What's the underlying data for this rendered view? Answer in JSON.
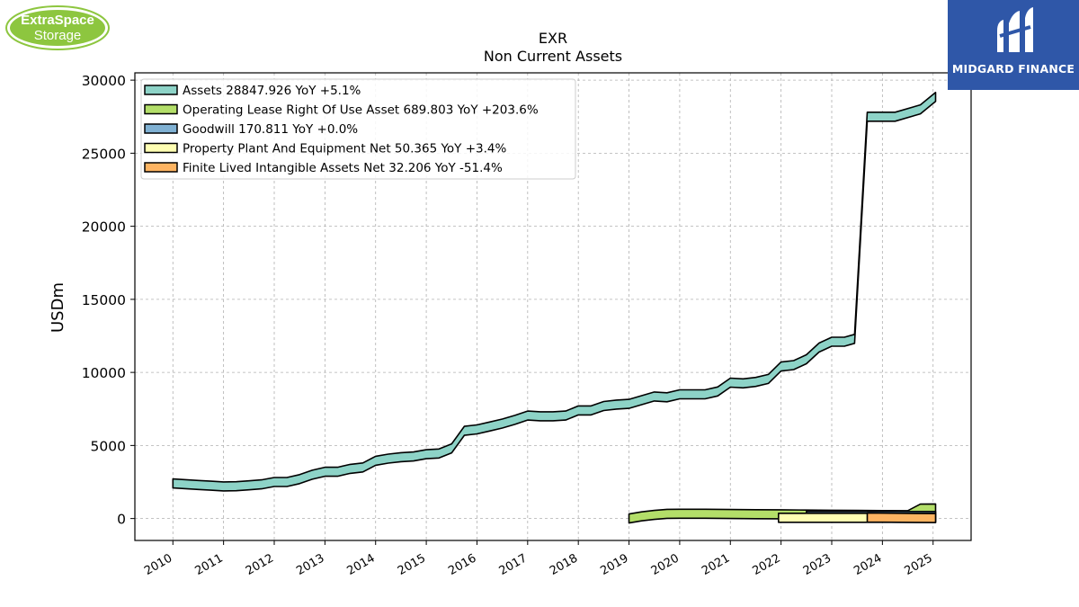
{
  "logos": {
    "left_line1": "ExtraSpace",
    "left_line2": "Storage",
    "right_text": "MIDGARD FINANCE"
  },
  "colors": {
    "assets": "#8dd3c7",
    "operating_lease": "#b3de69",
    "goodwill": "#80b1d3",
    "ppe": "#ffffb3",
    "intangibles": "#fdb462",
    "left_logo": "#8dc63f",
    "right_logo_bg": "#2f57a8"
  },
  "chart_data": {
    "type": "area",
    "title": "EXR",
    "subtitle": "Non Current  Assets",
    "ylabel": "USDm",
    "xlabel": "",
    "ylim": [
      -1500,
      30500
    ],
    "xlim": [
      2009.25,
      2025.75
    ],
    "yticks": [
      0,
      5000,
      10000,
      15000,
      20000,
      25000,
      30000
    ],
    "xticks": [
      "2010",
      "2011",
      "2012",
      "2013",
      "2014",
      "2015",
      "2016",
      "2017",
      "2018",
      "2019",
      "2020",
      "2021",
      "2022",
      "2023",
      "2024",
      "2025"
    ],
    "grid": true,
    "legend_position": "top-left",
    "legend": [
      "Assets  28847.926 YoY +5.1%",
      "Operating Lease Right Of Use Asset  689.803 YoY +203.6%",
      "Goodwill  170.811 YoY +0.0%",
      "Property Plant And Equipment Net  50.365 YoY +3.4%",
      "Finite Lived Intangible Assets Net  32.206 YoY -51.4%"
    ],
    "series": [
      {
        "name": "Assets",
        "x": [
          2010.0,
          2010.25,
          2010.5,
          2010.75,
          2011.0,
          2011.25,
          2011.5,
          2011.75,
          2012.0,
          2012.25,
          2012.5,
          2012.75,
          2013.0,
          2013.25,
          2013.5,
          2013.75,
          2014.0,
          2014.25,
          2014.5,
          2014.75,
          2015.0,
          2015.25,
          2015.5,
          2015.75,
          2016.0,
          2016.25,
          2016.5,
          2016.75,
          2017.0,
          2017.25,
          2017.5,
          2017.75,
          2018.0,
          2018.25,
          2018.5,
          2018.75,
          2019.0,
          2019.25,
          2019.5,
          2019.75,
          2020.0,
          2020.25,
          2020.5,
          2020.75,
          2021.0,
          2021.25,
          2021.5,
          2021.75,
          2022.0,
          2022.25,
          2022.5,
          2022.75,
          2023.0,
          2023.25,
          2023.45,
          2023.7,
          2023.95,
          2024.25,
          2024.75,
          2025.05
        ],
        "values": [
          2400,
          2350,
          2300,
          2250,
          2200,
          2210,
          2270,
          2340,
          2500,
          2500,
          2700,
          3000,
          3200,
          3200,
          3400,
          3500,
          3950,
          4100,
          4200,
          4250,
          4400,
          4450,
          4800,
          6000,
          6100,
          6300,
          6500,
          6750,
          7050,
          7000,
          7000,
          7050,
          7400,
          7400,
          7700,
          7800,
          7850,
          8100,
          8350,
          8300,
          8500,
          8500,
          8500,
          8700,
          9300,
          9250,
          9350,
          9550,
          10400,
          10500,
          10900,
          11700,
          12100,
          12100,
          12300,
          27500,
          27500,
          27500,
          28000,
          28847.926
        ]
      },
      {
        "name": "Operating Lease Right Of Use Asset",
        "x": [
          2019.0,
          2019.25,
          2019.5,
          2019.75,
          2020.0,
          2020.5,
          2021.0,
          2021.5,
          2022.0,
          2022.5,
          2023.0,
          2023.5,
          2024.0,
          2024.5,
          2024.75,
          2025.05
        ],
        "values": [
          0,
          150,
          250,
          320,
          330,
          330,
          310,
          300,
          290,
          270,
          260,
          250,
          235,
          227,
          680,
          689.803
        ]
      },
      {
        "name": "Goodwill",
        "x": [
          2022.5,
          2025.05
        ],
        "values": [
          170.811,
          170.811
        ]
      },
      {
        "name": "Property Plant And Equipment Net",
        "x": [
          2021.95,
          2025.05
        ],
        "values": [
          48.7,
          50.365
        ]
      },
      {
        "name": "Finite Lived Intangible Assets Net",
        "x": [
          2023.7,
          2025.05
        ],
        "values": [
          66.3,
          32.206
        ]
      }
    ]
  }
}
